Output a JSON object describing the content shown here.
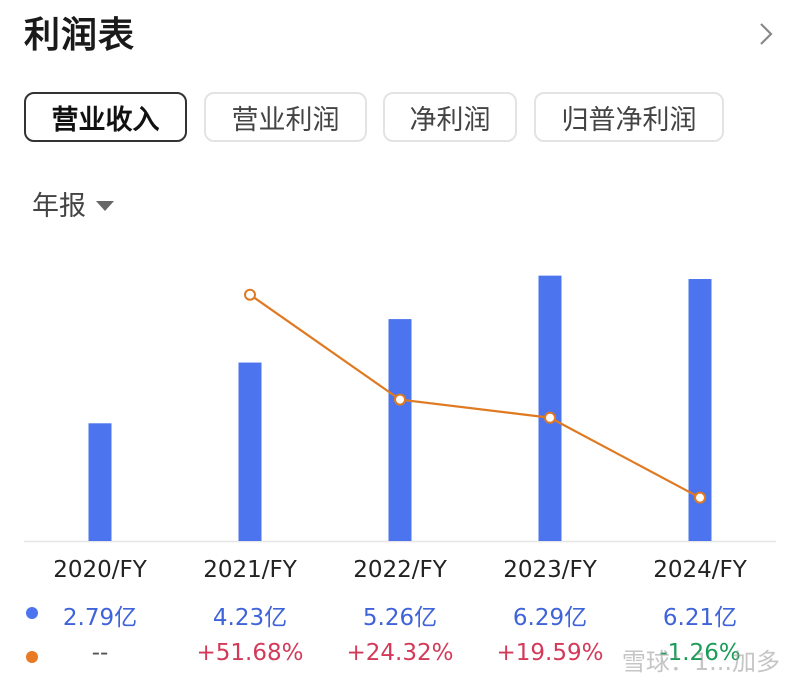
{
  "header": {
    "title": "利润表"
  },
  "tabs": [
    {
      "label": "营业收入",
      "active": true
    },
    {
      "label": "营业利润",
      "active": false
    },
    {
      "label": "净利润",
      "active": false
    },
    {
      "label": "归普净利润",
      "active": false
    }
  ],
  "period": {
    "label": "年报"
  },
  "watermark": "雪球：1...加多",
  "chart_data": {
    "type": "bar",
    "categories": [
      "2020/FY",
      "2021/FY",
      "2022/FY",
      "2023/FY",
      "2024/FY"
    ],
    "series": [
      {
        "type": "bar",
        "color": "#4c74ee",
        "values": [
          2.79,
          4.23,
          5.26,
          6.29,
          6.21
        ],
        "labels": [
          "2.79亿",
          "4.23亿",
          "5.26亿",
          "6.29亿",
          "6.21亿"
        ]
      },
      {
        "type": "line",
        "color": "#e07a22",
        "values": [
          null,
          51.68,
          24.32,
          19.59,
          -1.26
        ],
        "labels": [
          "--",
          "+51.68%",
          "+24.32%",
          "+19.59%",
          "-1.26%"
        ]
      }
    ]
  }
}
